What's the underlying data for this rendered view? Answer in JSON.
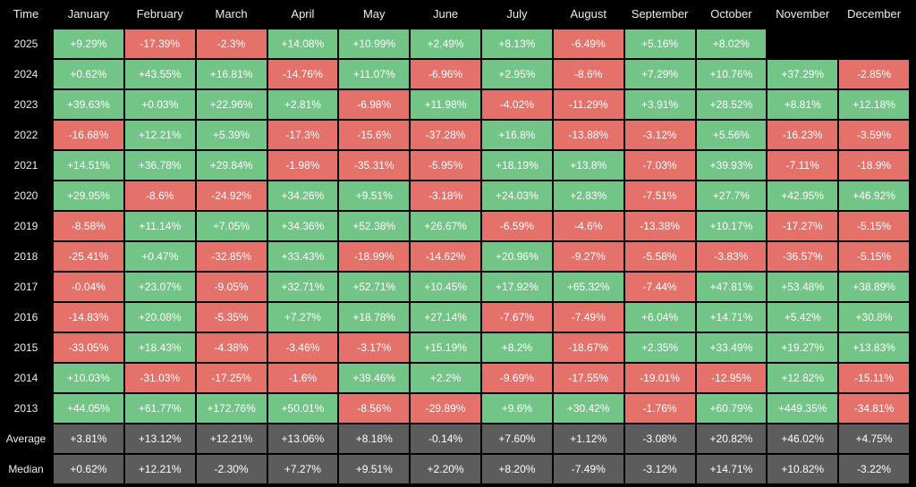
{
  "table": {
    "header": [
      "Time",
      "January",
      "February",
      "March",
      "April",
      "May",
      "June",
      "July",
      "August",
      "September",
      "October",
      "November",
      "December"
    ],
    "rows": [
      [
        "2025",
        "+9.29%",
        "-17.39%",
        "-2.3%",
        "+14.08%",
        "+10.99%",
        "+2.49%",
        "+8.13%",
        "-6.49%",
        "+5.16%",
        "+8.02%",
        null,
        null
      ],
      [
        "2024",
        "+0.62%",
        "+43.55%",
        "+16.81%",
        "-14.76%",
        "+11.07%",
        "-6.96%",
        "+2.95%",
        "-8.6%",
        "+7.29%",
        "+10.76%",
        "+37.29%",
        "-2.85%"
      ],
      [
        "2023",
        "+39.63%",
        "+0.03%",
        "+22.96%",
        "+2.81%",
        "-6.98%",
        "+11.98%",
        "-4.02%",
        "-11.29%",
        "+3.91%",
        "+28.52%",
        "+8.81%",
        "+12.18%"
      ],
      [
        "2022",
        "-16.68%",
        "+12.21%",
        "+5.39%",
        "-17.3%",
        "-15.6%",
        "-37.28%",
        "+16.8%",
        "-13.88%",
        "-3.12%",
        "+5.56%",
        "-16.23%",
        "-3.59%"
      ],
      [
        "2021",
        "+14.51%",
        "+36.78%",
        "+29.84%",
        "-1.98%",
        "-35.31%",
        "-5.95%",
        "+18.19%",
        "+13.8%",
        "-7.03%",
        "+39.93%",
        "-7.11%",
        "-18.9%"
      ],
      [
        "2020",
        "+29.95%",
        "-8.6%",
        "-24.92%",
        "+34.26%",
        "+9.51%",
        "-3.18%",
        "+24.03%",
        "+2.83%",
        "-7.51%",
        "+27.7%",
        "+42.95%",
        "+46.92%"
      ],
      [
        "2019",
        "-8.58%",
        "+11.14%",
        "+7.05%",
        "+34.36%",
        "+52.38%",
        "+26.67%",
        "-6.59%",
        "-4.6%",
        "-13.38%",
        "+10.17%",
        "-17.27%",
        "-5.15%"
      ],
      [
        "2018",
        "-25.41%",
        "+0.47%",
        "-32.85%",
        "+33.43%",
        "-18.99%",
        "-14.62%",
        "+20.96%",
        "-9.27%",
        "-5.58%",
        "-3.83%",
        "-36.57%",
        "-5.15%"
      ],
      [
        "2017",
        "-0.04%",
        "+23.07%",
        "-9.05%",
        "+32.71%",
        "+52.71%",
        "+10.45%",
        "+17.92%",
        "+65.32%",
        "-7.44%",
        "+47.81%",
        "+53.48%",
        "+38.89%"
      ],
      [
        "2016",
        "-14.83%",
        "+20.08%",
        "-5.35%",
        "+7.27%",
        "+18.78%",
        "+27.14%",
        "-7.67%",
        "-7.49%",
        "+6.04%",
        "+14.71%",
        "+5.42%",
        "+30.8%"
      ],
      [
        "2015",
        "-33.05%",
        "+18.43%",
        "-4.38%",
        "-3.46%",
        "-3.17%",
        "+15.19%",
        "+8.2%",
        "-18.67%",
        "+2.35%",
        "+33.49%",
        "+19.27%",
        "+13.83%"
      ],
      [
        "2014",
        "+10.03%",
        "-31.03%",
        "-17.25%",
        "-1.6%",
        "+39.46%",
        "+2.2%",
        "-9.69%",
        "-17.55%",
        "-19.01%",
        "-12.95%",
        "+12.82%",
        "-15.11%"
      ],
      [
        "2013",
        "+44.05%",
        "+61.77%",
        "+172.76%",
        "+50.01%",
        "-8.56%",
        "-29.89%",
        "+9.6%",
        "+30.42%",
        "-1.76%",
        "+60.79%",
        "+449.35%",
        "-34.81%"
      ]
    ],
    "summary_rows": [
      [
        "Average",
        "+3.81%",
        "+13.12%",
        "+12.21%",
        "+13.06%",
        "+8.18%",
        "-0.14%",
        "+7.60%",
        "+1.12%",
        "-3.08%",
        "+20.82%",
        "+46.02%",
        "+4.75%"
      ],
      [
        "Median",
        "+0.62%",
        "+12.21%",
        "-2.30%",
        "+7.27%",
        "+9.51%",
        "+2.20%",
        "+8.20%",
        "-7.49%",
        "-3.12%",
        "+14.71%",
        "+10.82%",
        "-3.22%"
      ]
    ]
  }
}
